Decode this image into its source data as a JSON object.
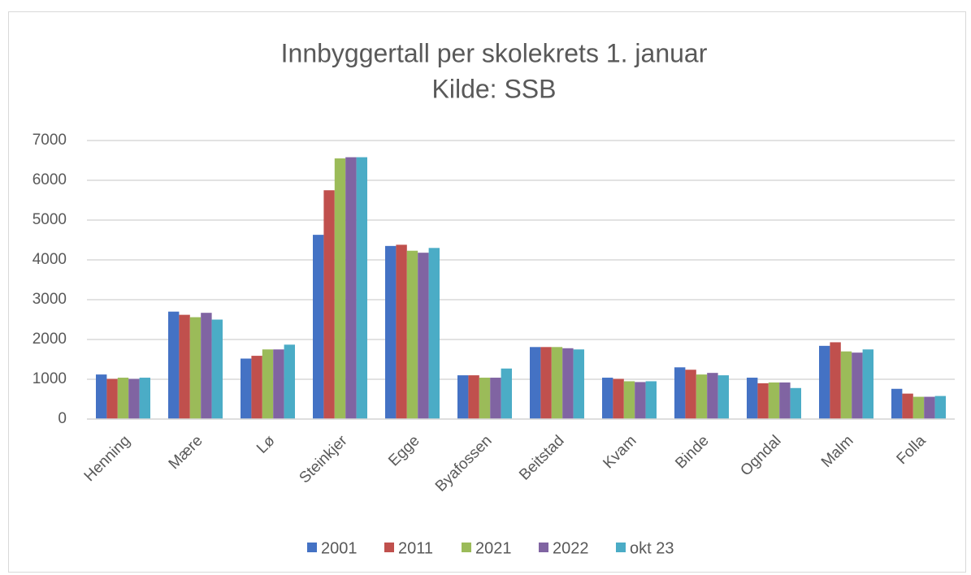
{
  "chart_data": {
    "type": "bar",
    "title": "Innbyggertall per skolekrets 1. januar",
    "subtitle": "Kilde: SSB",
    "categories": [
      "Henning",
      "Mære",
      "Lø",
      "Steinkjer",
      "Egge",
      "Byafossen",
      "Beitstad",
      "Kvam",
      "Binde",
      "Ogndal",
      "Malm",
      "Folla"
    ],
    "series": [
      {
        "name": "2001",
        "color": "#4472c4",
        "values": [
          1120,
          2700,
          1520,
          4630,
          4350,
          1100,
          1810,
          1040,
          1300,
          1040,
          1840,
          760
        ]
      },
      {
        "name": "2011",
        "color": "#c0504d",
        "values": [
          1010,
          2620,
          1590,
          5750,
          4380,
          1100,
          1810,
          1010,
          1240,
          900,
          1930,
          640
        ]
      },
      {
        "name": "2021",
        "color": "#9bbb59",
        "values": [
          1040,
          2560,
          1750,
          6550,
          4230,
          1040,
          1810,
          950,
          1120,
          920,
          1700,
          560
        ]
      },
      {
        "name": "2022",
        "color": "#8064a2",
        "values": [
          1010,
          2670,
          1750,
          6580,
          4180,
          1040,
          1780,
          930,
          1160,
          920,
          1670,
          560
        ]
      },
      {
        "name": "okt 23",
        "color": "#4bacc6",
        "values": [
          1040,
          2500,
          1870,
          6580,
          4300,
          1270,
          1750,
          950,
          1100,
          780,
          1750,
          580
        ]
      }
    ],
    "ylim": [
      0,
      7000
    ],
    "yticks": [
      0,
      1000,
      2000,
      3000,
      4000,
      5000,
      6000,
      7000
    ],
    "grid": true,
    "legend": "bottom"
  }
}
